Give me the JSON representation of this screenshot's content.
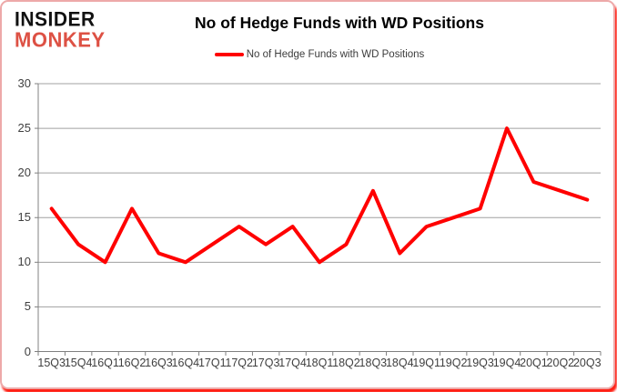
{
  "logo": {
    "line1": "INSIDER",
    "line2": "MONKEY"
  },
  "header": {
    "title": "No of Hedge Funds with WD Positions"
  },
  "legend": {
    "label": "No of Hedge Funds with WD Positions"
  },
  "colors": {
    "line": "#ff0000",
    "logo_accent": "#dd5144",
    "grid": "#a0a0a0",
    "axis": "#808080",
    "axis_text": "#3f3f3f",
    "border_pink": "#eda9a9",
    "border_red": "#ff1f14"
  },
  "chart_data": {
    "type": "line",
    "title": "No of Hedge Funds with WD Positions",
    "categories": [
      "15Q3",
      "15Q4",
      "16Q1",
      "16Q2",
      "16Q3",
      "16Q4",
      "17Q1",
      "17Q2",
      "17Q3",
      "17Q4",
      "18Q1",
      "18Q2",
      "18Q3",
      "18Q4",
      "19Q1",
      "19Q2",
      "19Q3",
      "19Q4",
      "20Q1",
      "20Q2",
      "20Q3"
    ],
    "series": [
      {
        "name": "No of Hedge Funds with WD Positions",
        "values": [
          16,
          12,
          10,
          16,
          11,
          10,
          12,
          14,
          12,
          14,
          10,
          12,
          18,
          11,
          14,
          15,
          16,
          25,
          19,
          18,
          17
        ]
      }
    ],
    "xlabel": "",
    "ylabel": "",
    "ylim": [
      0,
      30
    ],
    "yticks": [
      0,
      5,
      10,
      15,
      20,
      25,
      30
    ],
    "ytick_step": 5,
    "grid": "horizontal",
    "legend_position": "top-center"
  }
}
